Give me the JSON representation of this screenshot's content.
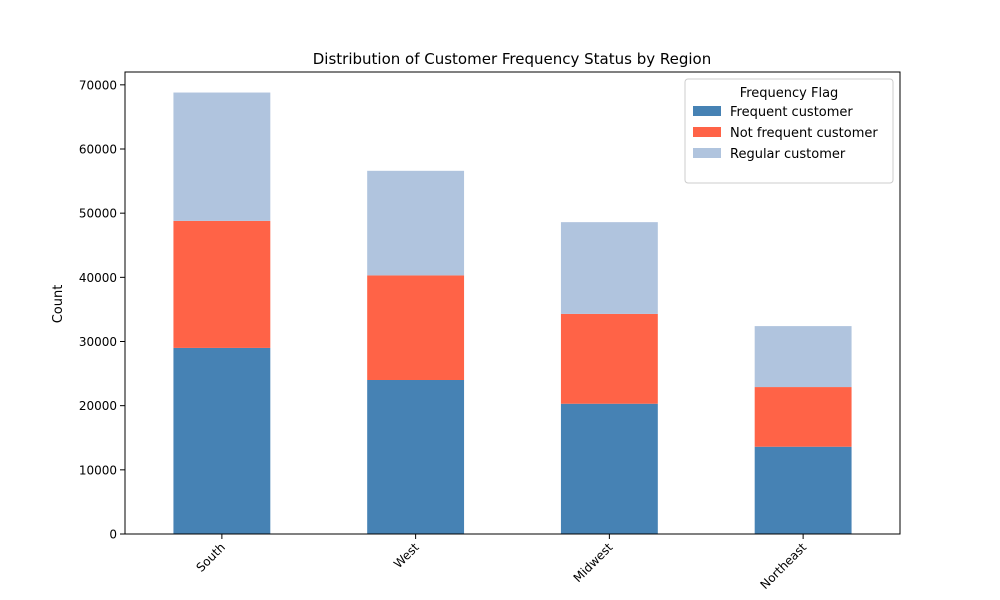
{
  "chart_data": {
    "type": "bar",
    "stacked": true,
    "title": "Distribution of Customer Frequency Status by Region",
    "xlabel": "",
    "ylabel": "Count",
    "ylim": [
      0,
      72000
    ],
    "yticks": [
      0,
      10000,
      20000,
      30000,
      40000,
      50000,
      60000,
      70000
    ],
    "categories": [
      "South",
      "West",
      "Midwest",
      "Northeast"
    ],
    "series": [
      {
        "name": "Frequent customer",
        "color": "#4682b4",
        "values": [
          29000,
          24000,
          20300,
          13600
        ]
      },
      {
        "name": "Not frequent customer",
        "color": "#ff6347",
        "values": [
          19800,
          16300,
          14000,
          9300
        ]
      },
      {
        "name": "Regular customer",
        "color": "#b0c4de",
        "values": [
          20000,
          16300,
          14300,
          9500
        ]
      }
    ],
    "legend": {
      "title": "Frequency Flag",
      "position": "top-right"
    },
    "grid": false
  }
}
